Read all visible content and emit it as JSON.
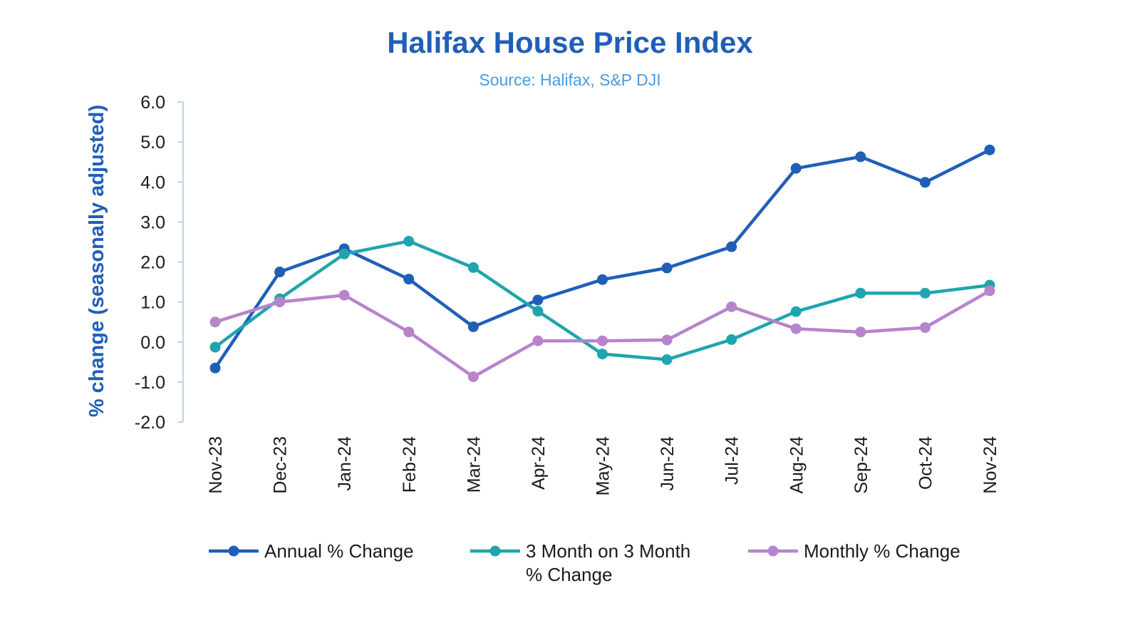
{
  "chart_data": {
    "type": "line",
    "title": "Halifax House Price Index",
    "subtitle": "Source: Halifax, S&P DJI",
    "xlabel": "",
    "ylabel": "% change (seasonally adjusted)",
    "ylim": [
      -2.0,
      6.0
    ],
    "yticks": [
      "6.0",
      "5.0",
      "4.0",
      "3.0",
      "2.0",
      "1.0",
      "0.0",
      "-1.0",
      "-2.0"
    ],
    "grid": false,
    "legend_position": "bottom",
    "categories": [
      "Nov-23",
      "Dec-23",
      "Jan-24",
      "Feb-24",
      "Mar-24",
      "Apr-24",
      "May-24",
      "Jun-24",
      "Jul-24",
      "Aug-24",
      "Sep-24",
      "Oct-24",
      "Nov-24"
    ],
    "series": [
      {
        "name": "Annual % Change",
        "color": "#1f5fb8",
        "values": [
          -0.65,
          1.75,
          2.33,
          1.57,
          0.38,
          1.05,
          1.56,
          1.85,
          2.38,
          4.34,
          4.63,
          3.99,
          4.8
        ]
      },
      {
        "name": "3 Month on 3 Month % Change",
        "legend_lines": [
          "3 Month on 3 Month",
          "% Change"
        ],
        "color": "#1fa5ad",
        "values": [
          -0.13,
          1.08,
          2.2,
          2.52,
          1.86,
          0.77,
          -0.3,
          -0.44,
          0.06,
          0.76,
          1.22,
          1.22,
          1.42
        ]
      },
      {
        "name": "Monthly % Change",
        "color": "#b784cc",
        "values": [
          0.5,
          1.0,
          1.17,
          0.25,
          -0.87,
          0.03,
          0.03,
          0.05,
          0.88,
          0.33,
          0.25,
          0.36,
          1.28
        ]
      }
    ]
  },
  "colors": {
    "title": "#1f5fb8",
    "subtitle": "#4a9be0",
    "ylabel": "#1f5fb8",
    "axis": "#9ecbe8"
  }
}
